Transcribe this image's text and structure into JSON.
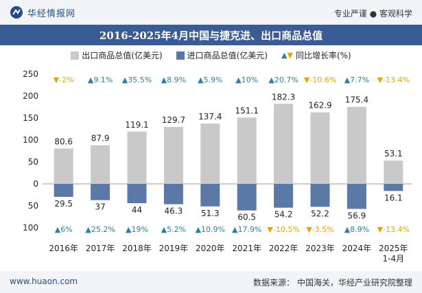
{
  "header": {
    "brand_name": "华经情报网",
    "tagline": "专业严谨 ● 客观科学",
    "brand_color": "#1f4c8c"
  },
  "title": "2016-2025年4月中国与捷克进、出口商品总值",
  "legend": {
    "export": "出口商品总值(亿美元)",
    "import": "进口商品总值(亿美元)",
    "yoy": "同比增长率(%)"
  },
  "footer": {
    "site": "www.huaon.com",
    "source_label": "数据来源：",
    "source_text": "中国海关，华经产业研究院整理"
  },
  "colors": {
    "export_bar": "#c9c9c9",
    "import_bar": "#5a79a6",
    "up": "#2d7fa4",
    "down": "#e2a800",
    "title_bg": "#3a5b94"
  },
  "chart_data": {
    "type": "bar",
    "categories": [
      "2016年",
      "2017年",
      "2018年",
      "2019年",
      "2020年",
      "2021年",
      "2022年",
      "2023年",
      "2024年",
      "2025年\n1-4月"
    ],
    "series": [
      {
        "name": "出口商品总值(亿美元)",
        "values": [
          80.6,
          87.9,
          119.1,
          129.7,
          137.4,
          151.1,
          182.3,
          162.9,
          175.4,
          53.1
        ]
      },
      {
        "name": "进口商品总值(亿美元)",
        "values": [
          29.5,
          37,
          44,
          46.3,
          51.3,
          60.5,
          54.2,
          52.2,
          56.9,
          16.1
        ]
      }
    ],
    "export_growth": [
      "-2%",
      "9.1%",
      "35.5%",
      "8.9%",
      "5.9%",
      "10%",
      "20.7%",
      "-10.6%",
      "7.7%",
      "-13.4%"
    ],
    "import_growth": [
      "6%",
      "25.2%",
      "19%",
      "5.2%",
      "10.9%",
      "17.9%",
      "-10.5%",
      "-3.5%",
      "8.9%",
      "-13.4%"
    ],
    "y_ticks_top": [
      "250",
      "200",
      "150",
      "100",
      "50",
      "0"
    ],
    "y_ticks_bottom": [
      "50",
      "100"
    ],
    "ylim_export": [
      0,
      250
    ],
    "ylim_import": [
      0,
      100
    ],
    "grid": false,
    "legend_position": "top"
  }
}
